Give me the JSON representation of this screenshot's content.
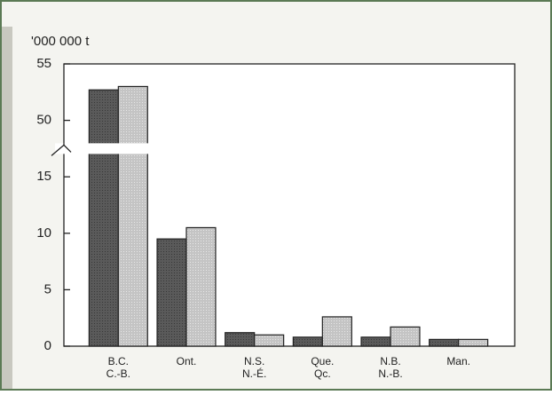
{
  "chart_data": {
    "type": "bar",
    "y_unit_label": "'000 000 t",
    "categories": [
      [
        "B.C.",
        "C.-B."
      ],
      [
        "Ont.",
        null
      ],
      [
        "N.S.",
        "N.-É."
      ],
      [
        "Que.",
        "Qc."
      ],
      [
        "N.B.",
        "N.-B."
      ],
      [
        "Man.",
        null
      ]
    ],
    "series": [
      {
        "color": "#5a5a5a",
        "values": [
          52.7,
          9.5,
          1.2,
          0.8,
          0.8,
          0.6
        ]
      },
      {
        "color": "#c4c4c4",
        "values": [
          53.0,
          10.5,
          1.0,
          2.6,
          1.7,
          0.6
        ]
      }
    ],
    "ylim": [
      0,
      55
    ],
    "yticks": [
      0,
      5,
      10,
      15,
      50,
      55
    ],
    "y_break": [
      17.5,
      47.5
    ]
  }
}
